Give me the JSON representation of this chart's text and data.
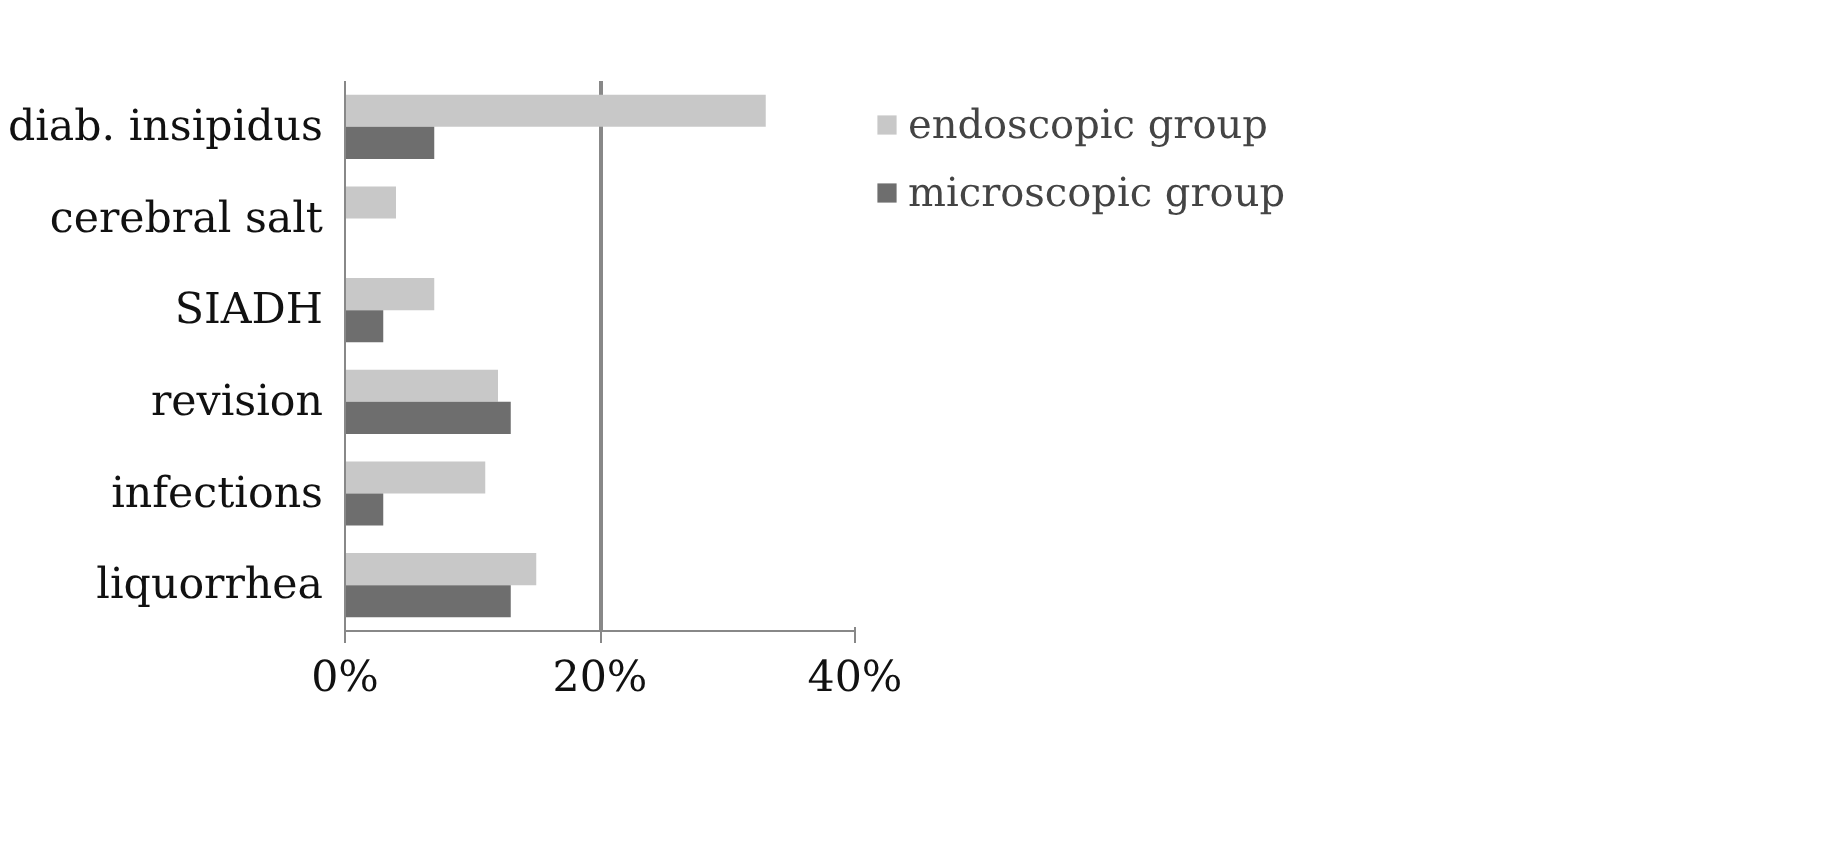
{
  "chart_data": {
    "type": "bar",
    "orientation": "horizontal",
    "categories": [
      "diab. insipidus",
      "cerebral salt",
      "SIADH",
      "revision",
      "infections",
      "liquorrhea"
    ],
    "series": [
      {
        "name": "endoscopic group",
        "color": "#c8c8c8",
        "values": [
          33,
          4,
          7,
          12,
          11,
          15
        ]
      },
      {
        "name": "microscopic group",
        "color": "#6e6e6e",
        "values": [
          7,
          0,
          3,
          13,
          3,
          13
        ]
      }
    ],
    "xlim": [
      0,
      40
    ],
    "xticks": [
      {
        "value": 0,
        "label": "0%"
      },
      {
        "value": 20,
        "label": "20%"
      },
      {
        "value": 40,
        "label": "40%"
      }
    ],
    "grid": "x",
    "legend": "right"
  }
}
